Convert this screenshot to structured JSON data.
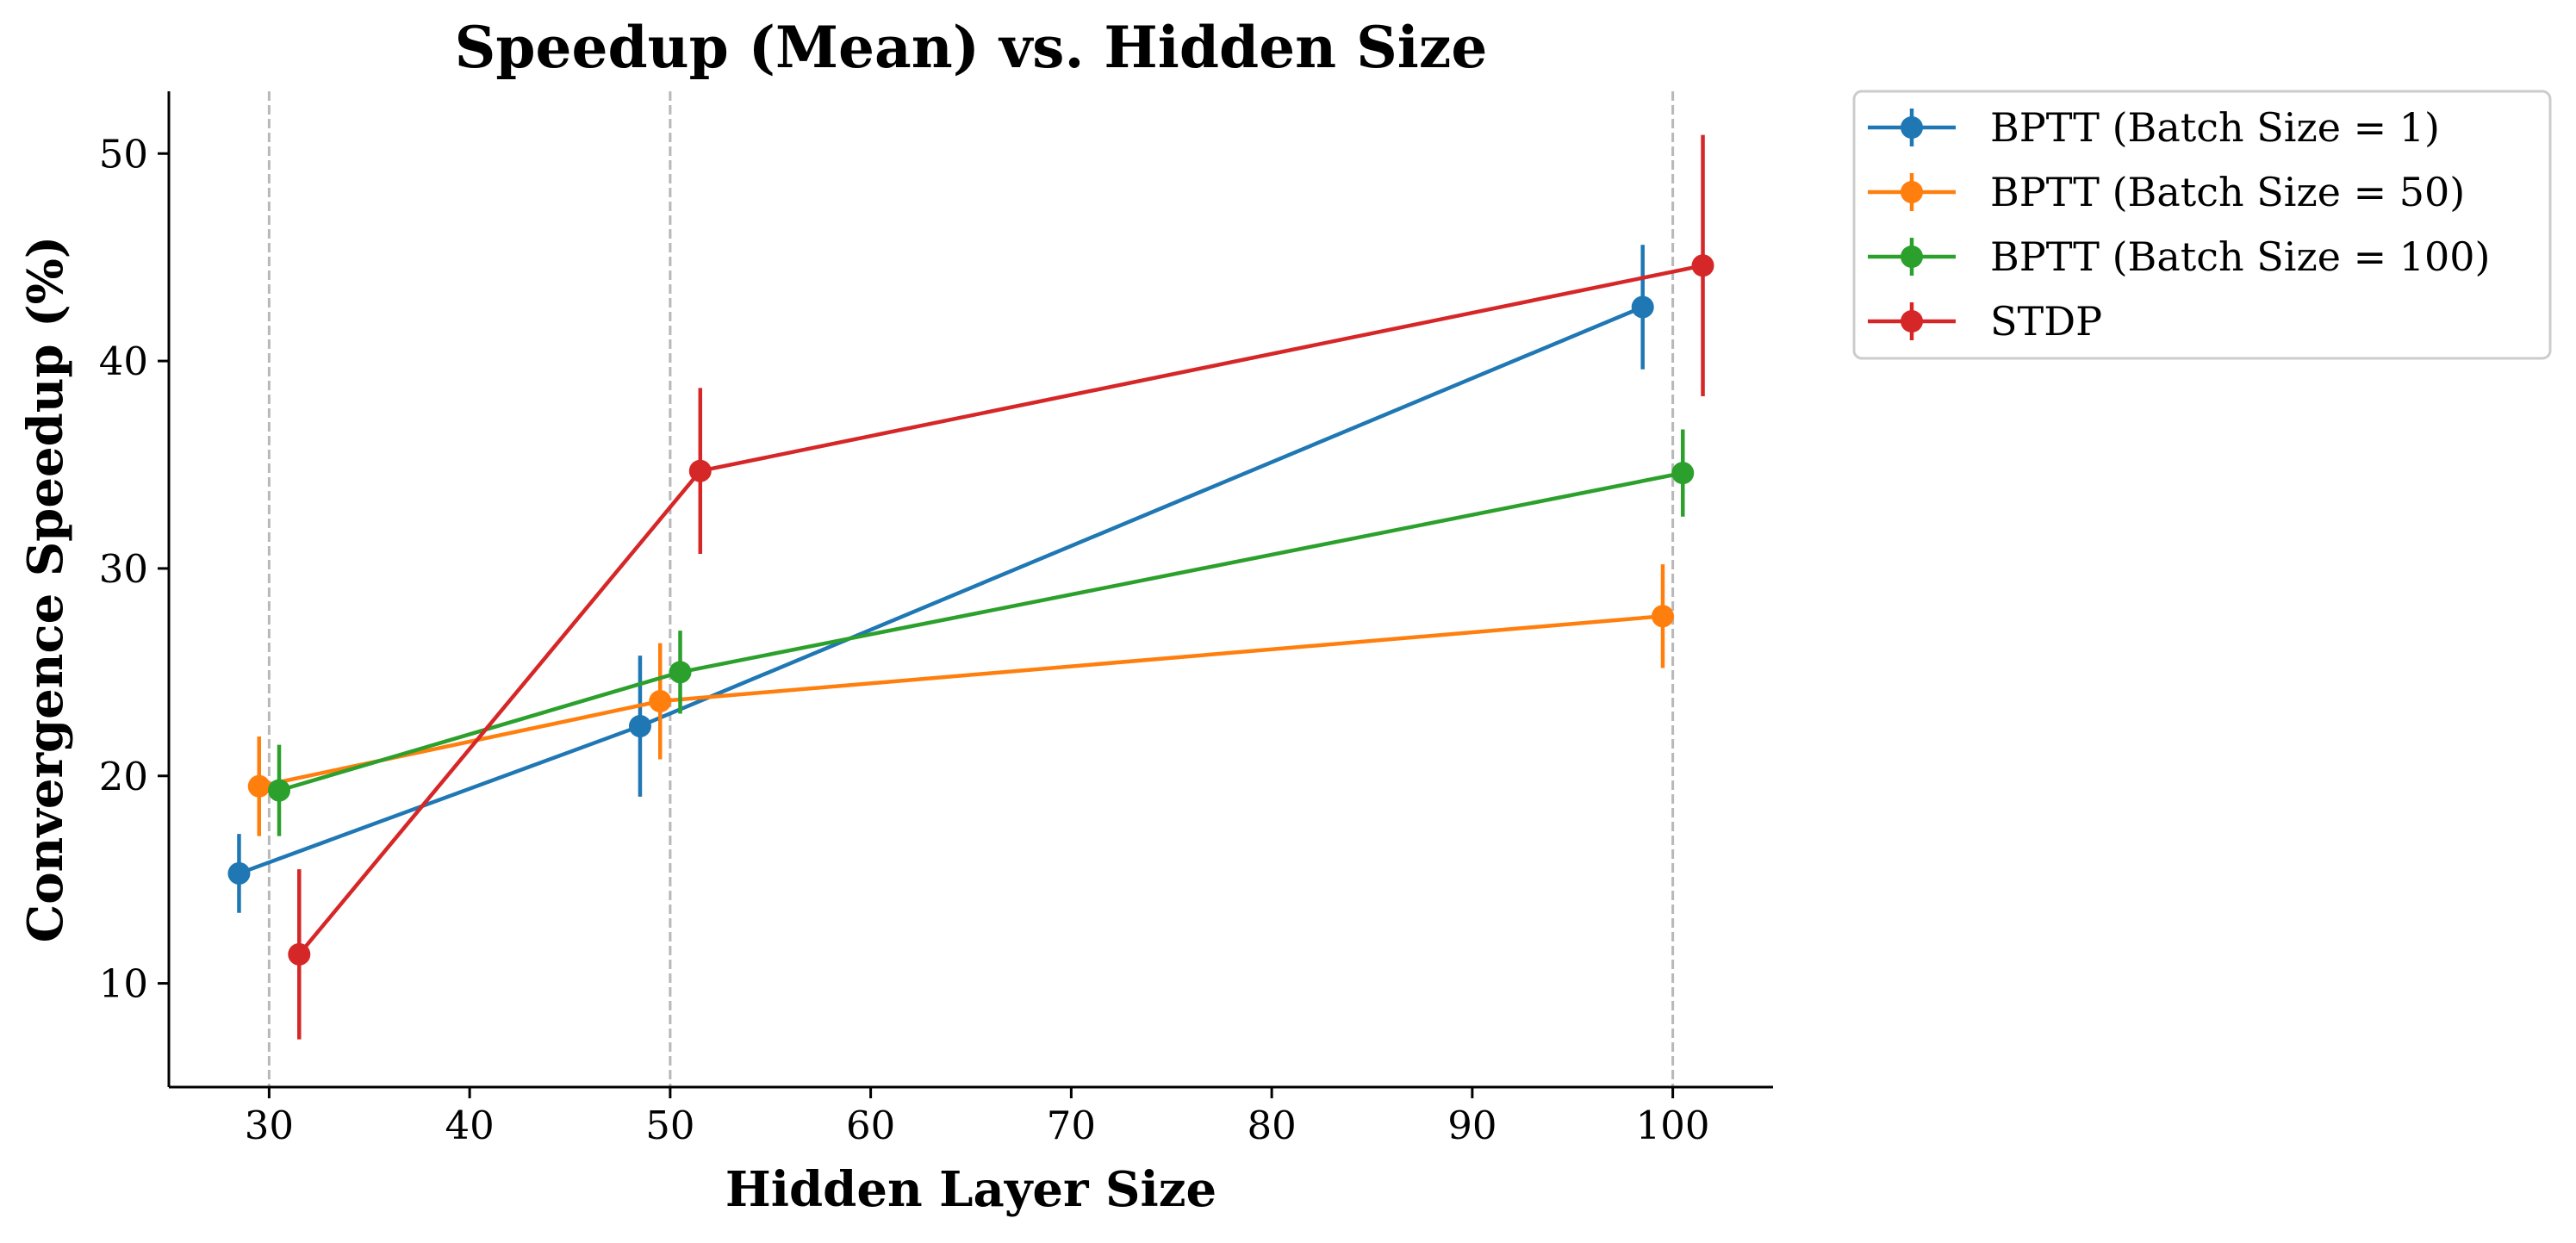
{
  "chart_data": {
    "type": "line",
    "title": "Speedup (Mean) vs. Hidden Size",
    "xlabel": "Hidden Layer Size",
    "ylabel": "Convergence Speedup (%)",
    "xlim": [
      25,
      105
    ],
    "ylim": [
      5,
      53
    ],
    "xticks": [
      30,
      40,
      50,
      60,
      70,
      80,
      90,
      100
    ],
    "yticks": [
      10,
      20,
      30,
      40,
      50
    ],
    "vlines": [
      30,
      50,
      100
    ],
    "grid": false,
    "legend_position": "outside-top-right",
    "series": [
      {
        "name": "BPTT (Batch Size = 1)",
        "color": "#1f77b4",
        "x": [
          28.5,
          48.5,
          98.5
        ],
        "y": [
          15.3,
          22.4,
          42.6
        ],
        "yerr": [
          1.9,
          3.4,
          3.0
        ]
      },
      {
        "name": "BPTT (Batch Size = 50)",
        "color": "#ff7f0e",
        "x": [
          29.5,
          49.5,
          99.5
        ],
        "y": [
          19.5,
          23.6,
          27.7
        ],
        "yerr": [
          2.4,
          2.8,
          2.5
        ]
      },
      {
        "name": "BPTT (Batch Size = 100)",
        "color": "#2ca02c",
        "x": [
          30.5,
          50.5,
          100.5
        ],
        "y": [
          19.3,
          25.0,
          34.6
        ],
        "yerr": [
          2.2,
          2.0,
          2.1
        ]
      },
      {
        "name": "STDP",
        "color": "#d62728",
        "x": [
          31.5,
          51.5,
          101.5
        ],
        "y": [
          11.4,
          34.7,
          44.6
        ],
        "yerr": [
          4.1,
          4.0,
          6.3
        ]
      }
    ]
  }
}
